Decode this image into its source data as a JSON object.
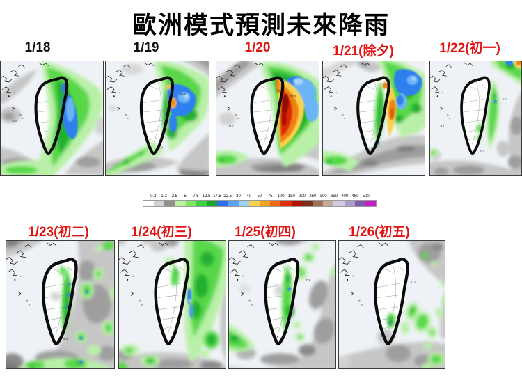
{
  "title": "歐洲模式預測未來降雨",
  "label_colors": {
    "normal": "#111111",
    "holiday": "#e11414"
  },
  "colorbar": {
    "ticks": [
      "0.2",
      "1.2",
      "2.5",
      "5",
      "7.5",
      "12.5",
      "17.5",
      "22.5",
      "30",
      "40",
      "50",
      "75",
      "100",
      "150",
      "200",
      "250",
      "300",
      "350",
      "400",
      "450",
      "500"
    ],
    "cells": [
      "#ffffff",
      "#d2d2d2",
      "#8f8f8f",
      "#bdf2a3",
      "#7fe662",
      "#3fd23f",
      "#17a42b",
      "#2e6cf0",
      "#5aa2f5",
      "#9ed2fa",
      "#f8d44a",
      "#f6a41f",
      "#ef6a10",
      "#de2f04",
      "#b11300",
      "#7c2e1c",
      "#a06f58",
      "#c6a893",
      "#d2cade",
      "#ac9ccc",
      "#7d5cb0",
      "#c41ec4"
    ]
  },
  "maps": [
    {
      "label": "1/18",
      "holiday": false,
      "values": [
        {
          "t": "0.5"
        },
        {
          "t": "0.0"
        }
      ]
    },
    {
      "label": "1/19",
      "holiday": false,
      "values": [
        {
          "t": "13.3"
        },
        {
          "t": "3.4"
        }
      ]
    },
    {
      "label": "1/20",
      "holiday": true,
      "values": [
        {
          "t": "24.0"
        },
        {
          "t": "0.2"
        }
      ]
    },
    {
      "label": "1/21(除夕)",
      "holiday": true,
      "values": [
        {
          "t": "0.6"
        }
      ]
    },
    {
      "label": "1/22(初一)",
      "holiday": true,
      "values": [
        {
          "t": "0.3"
        },
        {
          "t": "0.4"
        },
        {
          "t": "5.0"
        }
      ]
    },
    {
      "label": "1/23(初二)",
      "holiday": true,
      "values": [
        {
          "t": "0.1"
        },
        {
          "t": "3.4"
        }
      ]
    },
    {
      "label": "1/24(初三)",
      "holiday": true,
      "values": [
        {
          "t": "4.0"
        }
      ]
    },
    {
      "label": "1/25(初四)",
      "holiday": true,
      "values": [
        {
          "t": "0.6"
        },
        {
          "t": "0.4"
        }
      ]
    },
    {
      "label": "1/26(初五)",
      "holiday": true,
      "values": [
        {
          "t": "0.2"
        },
        {
          "t": "1.0"
        }
      ]
    }
  ]
}
